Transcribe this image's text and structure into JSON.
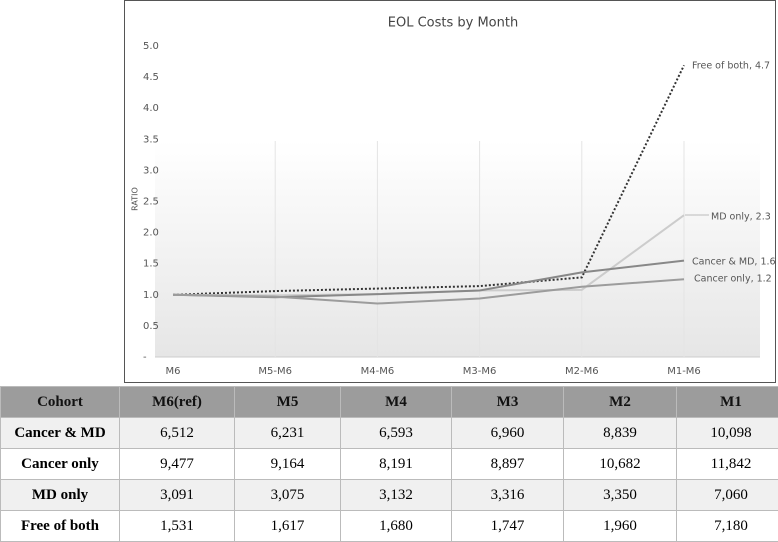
{
  "chart_data": {
    "type": "line",
    "title": "EOL Costs by Month",
    "y_label": "RATIO",
    "categories": [
      "M6",
      "M5-M6",
      "M4-M6",
      "M3-M6",
      "M2-M6",
      "M1-M6"
    ],
    "ylim": [
      0,
      5
    ],
    "yticks": [
      {
        "value": 0,
        "label": "-"
      },
      0.5,
      {
        "value": 1,
        "label": "1.0"
      },
      1.5,
      {
        "value": 2,
        "label": "2.0"
      },
      2.5,
      {
        "value": 3,
        "label": "3.0"
      },
      3.5,
      {
        "value": 4,
        "label": "4.0"
      },
      4.5,
      {
        "value": 5,
        "label": "5.0"
      }
    ],
    "series": [
      {
        "name": "Free of both",
        "color": "#333333",
        "dash": "dotted",
        "values": [
          1.0,
          1.06,
          1.1,
          1.14,
          1.28,
          4.69
        ]
      },
      {
        "name": "MD only",
        "color": "#cccccc",
        "values": [
          1.0,
          0.99,
          1.01,
          1.07,
          1.08,
          2.28
        ]
      },
      {
        "name": "Cancer & MD",
        "color": "#888888",
        "values": [
          1.0,
          0.96,
          1.01,
          1.07,
          1.36,
          1.55
        ]
      },
      {
        "name": "Cancer only",
        "color": "#9c9c9c",
        "values": [
          1.0,
          0.97,
          0.86,
          0.94,
          1.13,
          1.25
        ]
      }
    ],
    "annotations": [
      "Free of both,  4.7",
      "MD only,  2.3",
      "Cancer & MD,  1.6",
      "Cancer only,  1.2"
    ]
  },
  "table": {
    "header": [
      "Cohort",
      "M6(ref)",
      "M5",
      "M4",
      "M3",
      "M2",
      "M1"
    ],
    "rows": [
      [
        "Cancer & MD",
        "6,512",
        "6,231",
        "6,593",
        "6,960",
        "8,839",
        "10,098"
      ],
      [
        "Cancer only",
        "9,477",
        "9,164",
        "8,191",
        "8,897",
        "10,682",
        "11,842"
      ],
      [
        "MD only",
        "3,091",
        "3,075",
        "3,132",
        "3,316",
        "3,350",
        "7,060"
      ],
      [
        "Free of both",
        "1,531",
        "1,617",
        "1,680",
        "1,747",
        "1,960",
        "7,180"
      ]
    ]
  }
}
